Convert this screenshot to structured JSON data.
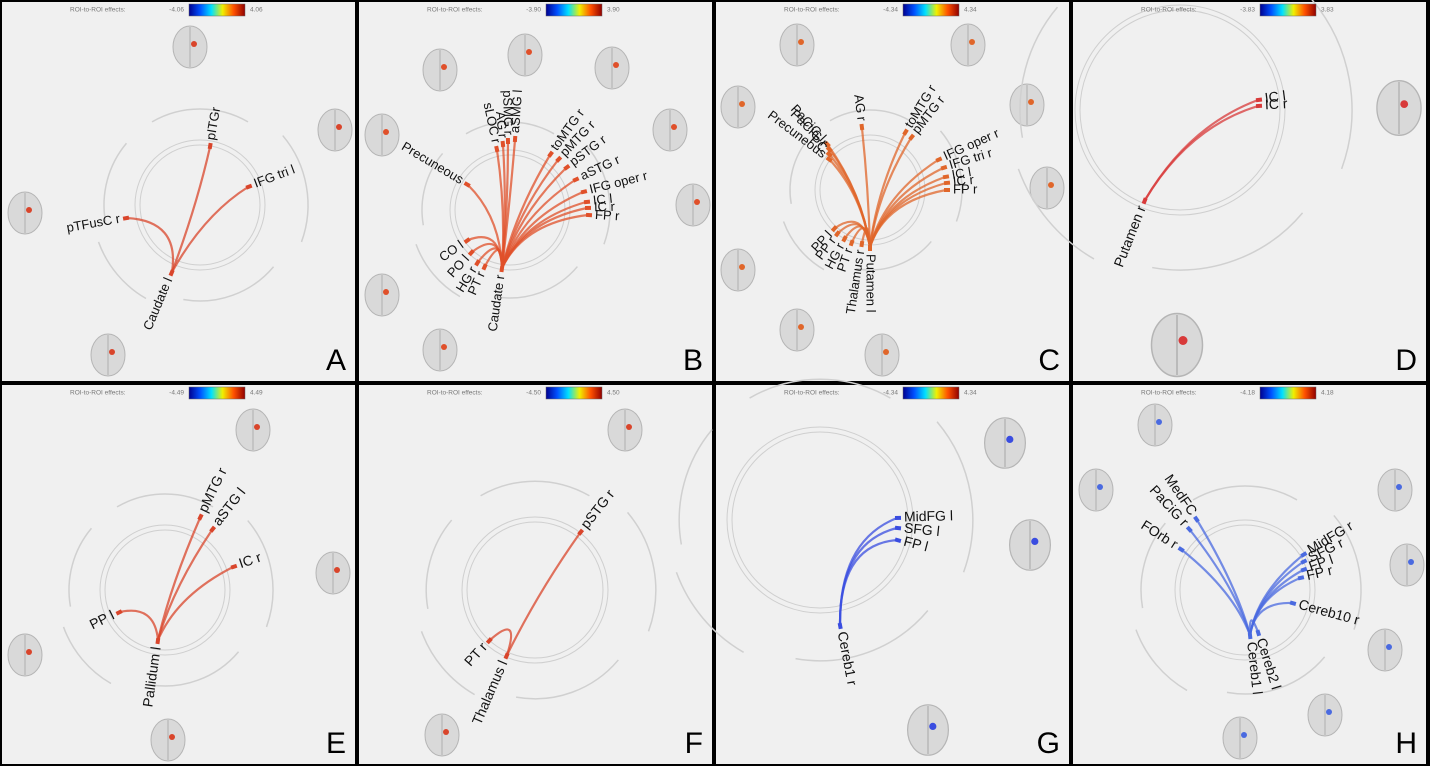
{
  "panels": [
    {
      "letter": "A",
      "color": "#d9452b",
      "colorbar": {
        "label": "ROI-to-ROI effects:",
        "min": "-4.06",
        "max": "4.06"
      },
      "hub": "Caudate l",
      "nodes": [
        "pITGr",
        "IFG tri l",
        "pTFusC r"
      ]
    },
    {
      "letter": "B",
      "color": "#e0502a",
      "colorbar": {
        "label": "ROI-to-ROI effects:",
        "min": "-3.90",
        "max": "3.90"
      },
      "hub": "Caudate r",
      "nodes": [
        "Precuneous",
        "sLOC r",
        "AG r",
        "pSMG r",
        "aSMG l",
        "toMTG r",
        "pMTG r",
        "pSTG r",
        "aSTG r",
        "IFG oper r",
        "IC l",
        "IC r",
        "FP r",
        "CO l",
        "PO l",
        "HG r",
        "PT r"
      ]
    },
    {
      "letter": "C",
      "color": "#e0662a",
      "colorbar": {
        "label": "ROI-to-ROI effects:",
        "min": "-4.34",
        "max": "4.34"
      },
      "hub": "Putamen l",
      "nodes": [
        "PaCiG l",
        "PaCiG r",
        "PC",
        "Precuneous",
        "AG r",
        "toMTG r",
        "pMTG r",
        "IFG oper r",
        "IFG tri r",
        "IC l",
        "IC r",
        "FP r",
        "PP l",
        "PP r",
        "HG r",
        "PT r",
        "Thalamus r"
      ]
    },
    {
      "letter": "D",
      "color": "#d83a3a",
      "colorbar": {
        "label": "ROI-to-ROI effects:",
        "min": "-3.83",
        "max": "3.83"
      },
      "hub": "Putamen r",
      "nodes": [
        "IC l",
        "IC r"
      ]
    },
    {
      "letter": "E",
      "color": "#d9452b",
      "colorbar": {
        "label": "ROI-to-ROI effects:",
        "min": "-4.49",
        "max": "4.49"
      },
      "hub": "Pallidum l",
      "nodes": [
        "pMTG r",
        "aSTG l",
        "IC r",
        "PP l"
      ]
    },
    {
      "letter": "F",
      "color": "#d9452b",
      "colorbar": {
        "label": "ROI-to-ROI effects:",
        "min": "-4.50",
        "max": "4.50"
      },
      "hub": "Thalamus l",
      "nodes": [
        "pSTG r",
        "PT r"
      ]
    },
    {
      "letter": "G",
      "color": "#3a4de0",
      "colorbar": {
        "label": "ROI-to-ROI effects:",
        "min": "-4.34",
        "max": "4.34"
      },
      "hub": "Cereb1 r",
      "nodes": [
        "MidFG l",
        "SFG l",
        "FP l"
      ]
    },
    {
      "letter": "H",
      "color": "#4a6ae0",
      "colorbar": {
        "label": "ROI-to-ROI effects:",
        "min": "-4.18",
        "max": "4.18"
      },
      "hub": "Cereb1 l",
      "nodes": [
        "MedFC",
        "PaCiG r",
        "FOrb r",
        "MidFG r",
        "SFG r",
        "FP l",
        "FP r",
        "Cereb10 r",
        "Cereb2 l"
      ]
    }
  ]
}
